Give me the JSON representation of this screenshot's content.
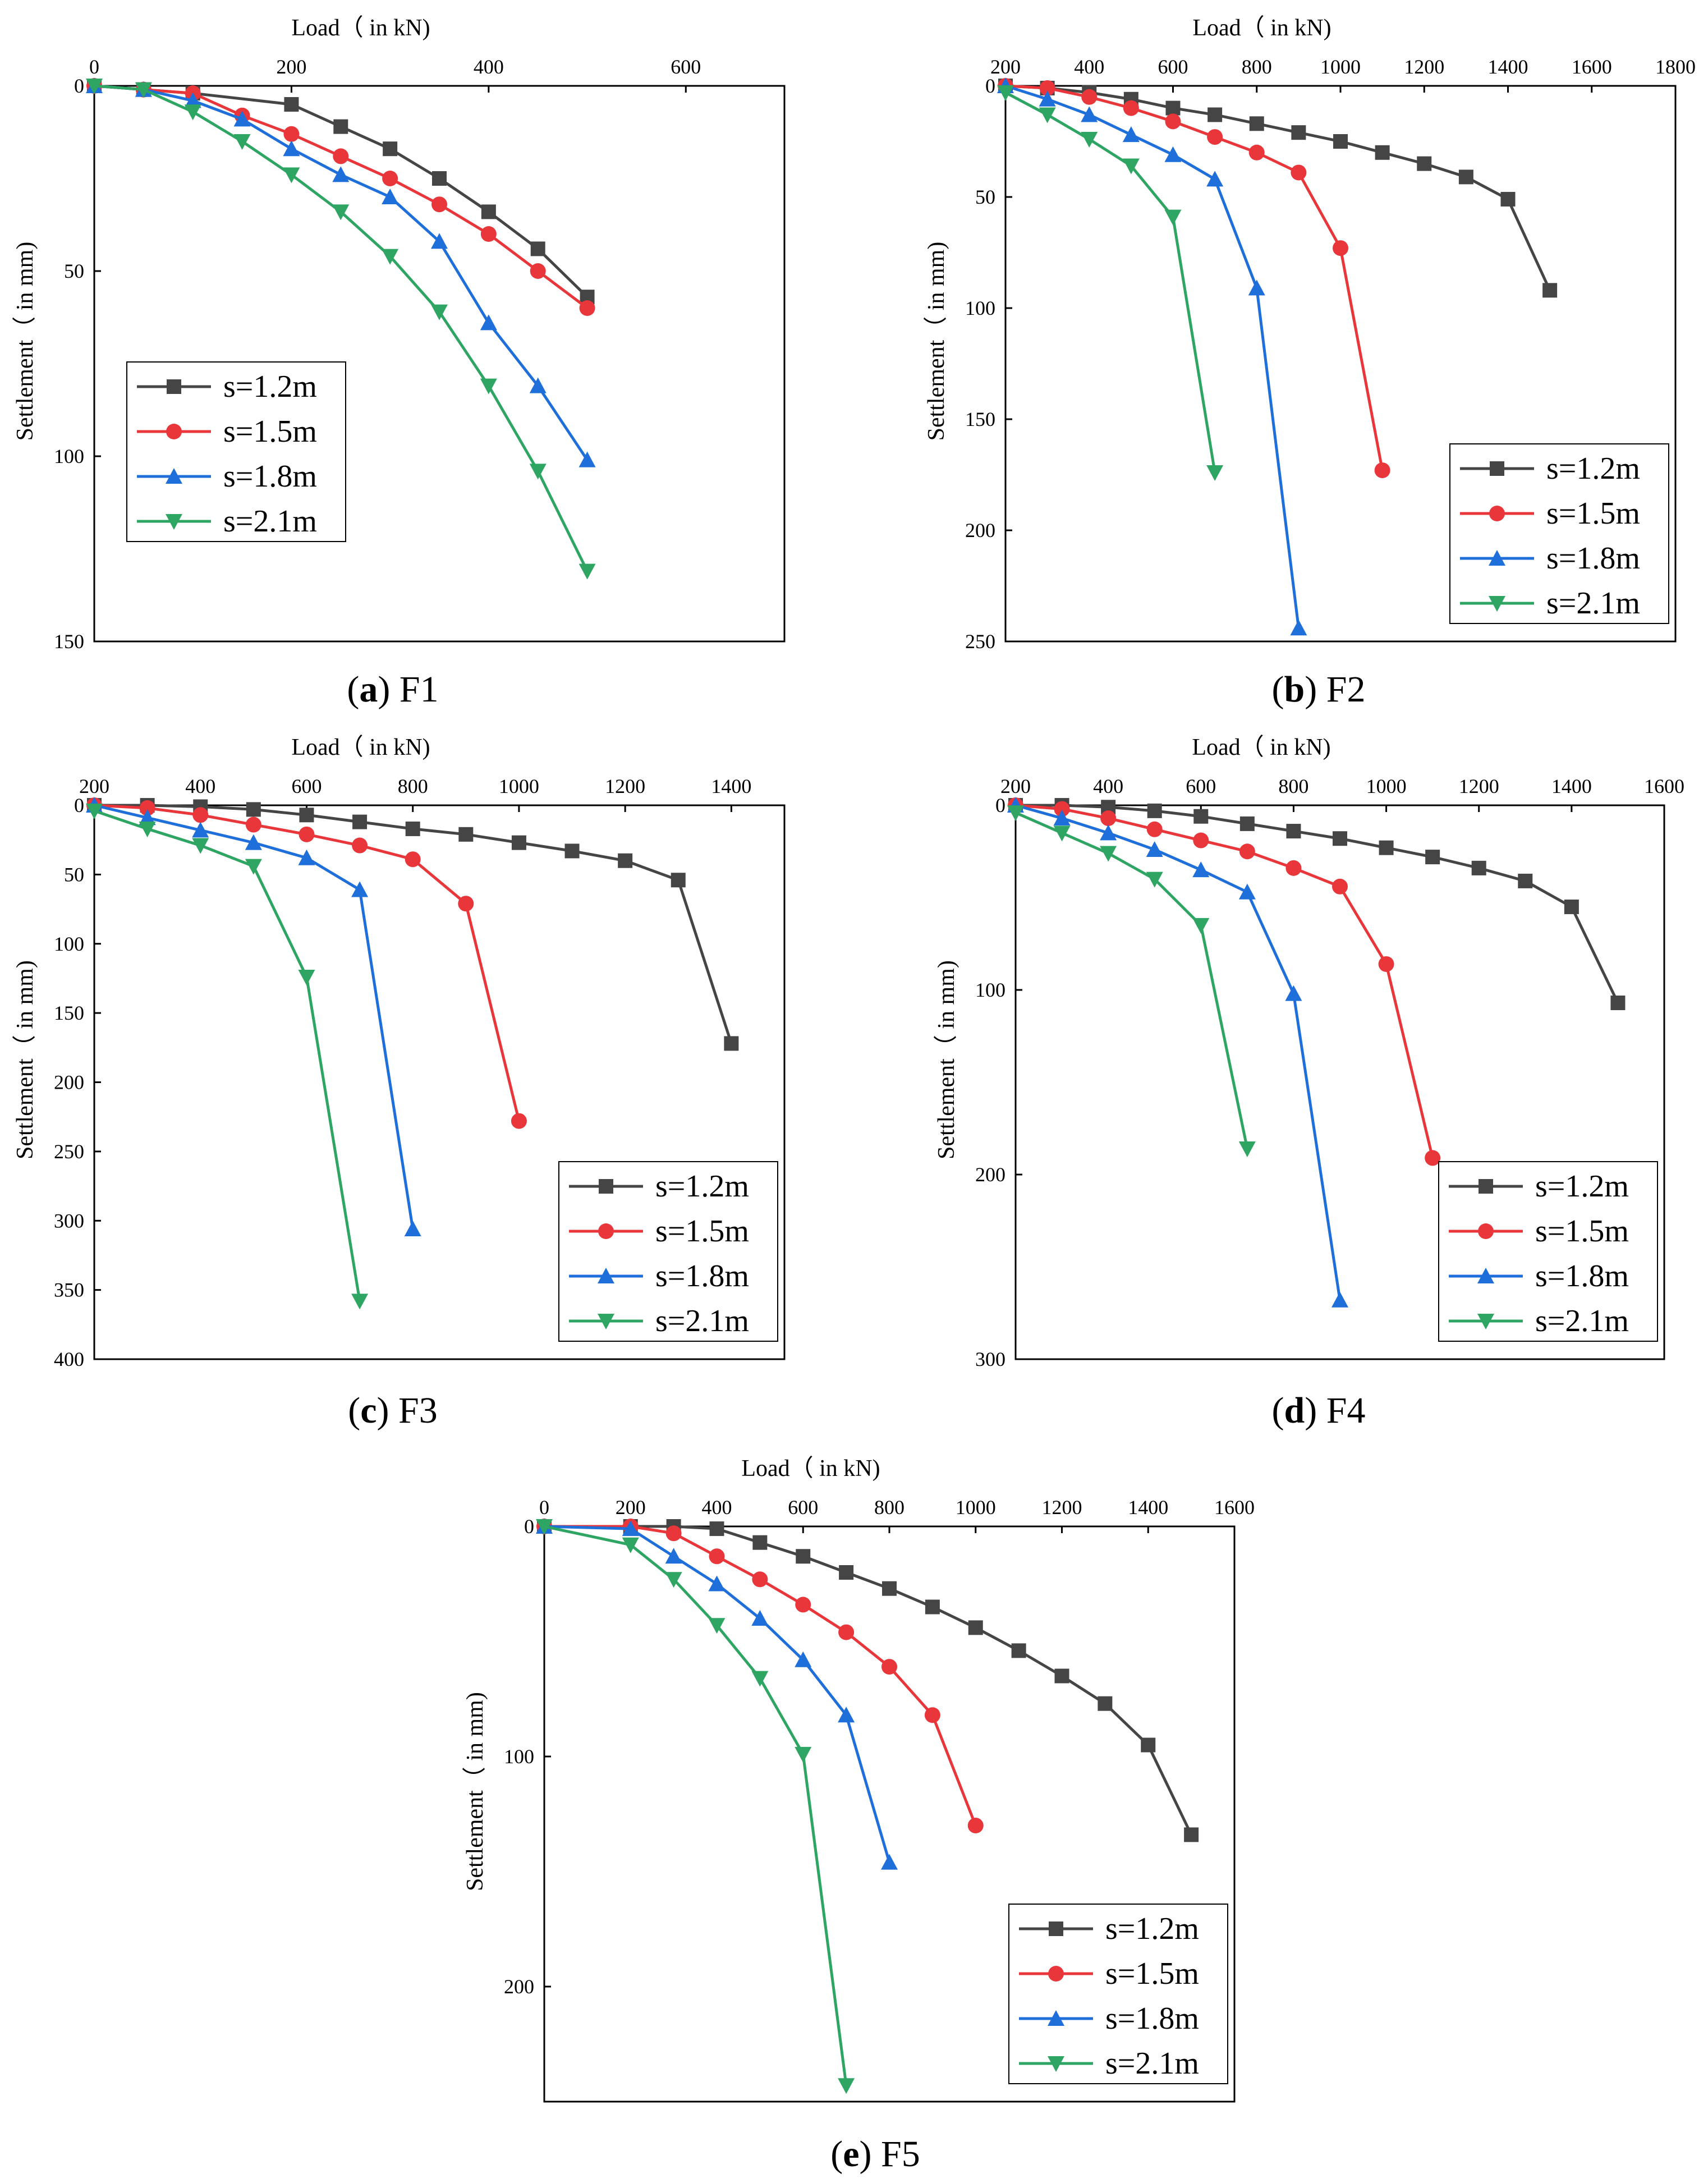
{
  "colors": {
    "s=1.2m": "#454545",
    "s=1.5m": "#e8363a",
    "s=1.8m": "#1f6fdb",
    "s=2.1m": "#2ea563",
    "axis": "#000000"
  },
  "series_names": [
    "s=1.2m",
    "s=1.5m",
    "s=1.8m",
    "s=2.1m"
  ],
  "series_markers": [
    "square",
    "circle",
    "triangle-up",
    "triangle-down"
  ],
  "chart_data": [
    {
      "type": "line",
      "panel_label": "a",
      "panel_name": "F1",
      "xlabel": "Load（ in kN)",
      "ylabel": "Settlement（ in mm)",
      "xlim": [
        0,
        700
      ],
      "ylim": [
        150,
        0
      ],
      "xticks": [
        0,
        200,
        400,
        600
      ],
      "yticks": [
        0,
        50,
        100,
        150
      ],
      "x_axis_position": "top",
      "y_inverted": true,
      "grid": false,
      "legend_position": "bottom-left",
      "series": [
        {
          "name": "s=1.2m",
          "x": [
            0,
            50,
            100,
            200,
            250,
            300,
            350,
            400,
            450,
            500
          ],
          "y": [
            0,
            1,
            2,
            5,
            11,
            17,
            25,
            34,
            44,
            57
          ]
        },
        {
          "name": "s=1.5m",
          "x": [
            0,
            50,
            100,
            150,
            200,
            250,
            300,
            350,
            400,
            450,
            500
          ],
          "y": [
            0,
            1,
            2,
            8,
            13,
            19,
            25,
            32,
            40,
            50,
            60
          ]
        },
        {
          "name": "s=1.8m",
          "x": [
            0,
            50,
            100,
            150,
            200,
            250,
            300,
            350,
            400,
            450,
            500
          ],
          "y": [
            0,
            1,
            4,
            9,
            17,
            24,
            30,
            42,
            64,
            81,
            101
          ]
        },
        {
          "name": "s=2.1m",
          "x": [
            0,
            50,
            100,
            150,
            200,
            250,
            300,
            350,
            400,
            450,
            500
          ],
          "y": [
            0,
            1,
            7,
            15,
            24,
            34,
            46,
            61,
            81,
            104,
            131
          ]
        }
      ]
    },
    {
      "type": "line",
      "panel_label": "b",
      "panel_name": "F2",
      "xlabel": "Load（ in kN)",
      "ylabel": "Settlement（ in mm)",
      "xlim": [
        200,
        1800
      ],
      "ylim": [
        250,
        0
      ],
      "xticks": [
        200,
        400,
        600,
        800,
        1000,
        1200,
        1400,
        1600,
        1800
      ],
      "yticks": [
        0,
        50,
        100,
        150,
        200,
        250
      ],
      "x_axis_position": "top",
      "y_inverted": true,
      "grid": false,
      "legend_position": "bottom-right",
      "series": [
        {
          "name": "s=1.2m",
          "x": [
            200,
            300,
            400,
            500,
            600,
            700,
            800,
            900,
            1000,
            1100,
            1200,
            1300,
            1400,
            1500
          ],
          "y": [
            0,
            1,
            3,
            6,
            10,
            13,
            17,
            21,
            25,
            30,
            35,
            41,
            51,
            92
          ]
        },
        {
          "name": "s=1.5m",
          "x": [
            200,
            300,
            400,
            500,
            600,
            700,
            800,
            900,
            1000,
            1100
          ],
          "y": [
            0,
            1,
            5,
            10,
            16,
            23,
            30,
            39,
            73,
            173
          ]
        },
        {
          "name": "s=1.8m",
          "x": [
            200,
            300,
            400,
            500,
            600,
            700,
            800,
            900
          ],
          "y": [
            0,
            6,
            13,
            22,
            31,
            42,
            91,
            244
          ]
        },
        {
          "name": "s=2.1m",
          "x": [
            200,
            300,
            400,
            500,
            600,
            700
          ],
          "y": [
            3,
            13,
            24,
            36,
            59,
            174
          ]
        }
      ]
    },
    {
      "type": "line",
      "panel_label": "c",
      "panel_name": "F3",
      "xlabel": "Load（ in kN)",
      "ylabel": "Settlement（ in mm)",
      "xlim": [
        200,
        1500
      ],
      "ylim": [
        400,
        0
      ],
      "xticks": [
        200,
        400,
        600,
        800,
        1000,
        1200,
        1400
      ],
      "yticks": [
        0,
        50,
        100,
        150,
        200,
        250,
        300,
        350,
        400
      ],
      "x_axis_position": "top",
      "y_inverted": true,
      "grid": false,
      "legend_position": "bottom-right",
      "series": [
        {
          "name": "s=1.2m",
          "x": [
            200,
            300,
            400,
            500,
            600,
            700,
            800,
            900,
            1000,
            1100,
            1200,
            1300,
            1400
          ],
          "y": [
            0,
            0,
            1,
            3,
            7,
            12,
            17,
            21,
            27,
            33,
            40,
            54,
            172
          ]
        },
        {
          "name": "s=1.5m",
          "x": [
            200,
            300,
            400,
            500,
            600,
            700,
            800,
            900,
            1000
          ],
          "y": [
            0,
            2,
            7,
            14,
            21,
            29,
            39,
            71,
            228
          ]
        },
        {
          "name": "s=1.8m",
          "x": [
            200,
            300,
            400,
            500,
            600,
            700,
            800
          ],
          "y": [
            0,
            9,
            18,
            27,
            38,
            61,
            306
          ]
        },
        {
          "name": "s=2.1m",
          "x": [
            200,
            300,
            400,
            500,
            600,
            700
          ],
          "y": [
            4,
            17,
            29,
            44,
            124,
            358
          ]
        }
      ]
    },
    {
      "type": "line",
      "panel_label": "d",
      "panel_name": "F4",
      "xlabel": "Load（ in kN)",
      "ylabel": "Settlement（ in mm)",
      "xlim": [
        200,
        1600
      ],
      "ylim": [
        300,
        0
      ],
      "xticks": [
        200,
        400,
        600,
        800,
        1000,
        1200,
        1400,
        1600
      ],
      "yticks": [
        0,
        100,
        200,
        300
      ],
      "x_axis_position": "top",
      "y_inverted": true,
      "grid": false,
      "legend_position": "bottom-right",
      "series": [
        {
          "name": "s=1.2m",
          "x": [
            200,
            300,
            400,
            500,
            600,
            700,
            800,
            900,
            1000,
            1100,
            1200,
            1300,
            1400,
            1500
          ],
          "y": [
            0,
            0,
            1,
            3,
            6,
            10,
            14,
            18,
            23,
            28,
            34,
            41,
            55,
            107
          ]
        },
        {
          "name": "s=1.5m",
          "x": [
            200,
            300,
            400,
            500,
            600,
            700,
            800,
            900,
            1000,
            1100
          ],
          "y": [
            0,
            2,
            7,
            13,
            19,
            25,
            34,
            44,
            86,
            191
          ]
        },
        {
          "name": "s=1.8m",
          "x": [
            200,
            300,
            400,
            500,
            600,
            700,
            800,
            900
          ],
          "y": [
            0,
            7,
            15,
            24,
            35,
            47,
            102,
            268
          ]
        },
        {
          "name": "s=2.1m",
          "x": [
            200,
            300,
            400,
            500,
            600,
            700
          ],
          "y": [
            4,
            15,
            26,
            40,
            65,
            186
          ]
        }
      ]
    },
    {
      "type": "line",
      "panel_label": "e",
      "panel_name": "F5",
      "xlabel": "Load（ in kN)",
      "ylabel": "Settlement（ in mm)",
      "xlim": [
        0,
        1600
      ],
      "ylim": [
        250,
        0
      ],
      "xticks": [
        0,
        200,
        400,
        600,
        800,
        1000,
        1200,
        1400,
        1600
      ],
      "yticks": [
        0,
        100,
        200
      ],
      "x_axis_position": "top",
      "y_inverted": true,
      "grid": false,
      "legend_position": "bottom-right",
      "series": [
        {
          "name": "s=1.2m",
          "x": [
            0,
            200,
            300,
            400,
            500,
            600,
            700,
            800,
            900,
            1000,
            1100,
            1200,
            1300,
            1400,
            1500
          ],
          "y": [
            0,
            0,
            0,
            1,
            7,
            13,
            20,
            27,
            35,
            44,
            54,
            65,
            77,
            95,
            134
          ]
        },
        {
          "name": "s=1.5m",
          "x": [
            0,
            200,
            300,
            400,
            500,
            600,
            700,
            800,
            900,
            1000
          ],
          "y": [
            0,
            0,
            3,
            13,
            23,
            34,
            46,
            61,
            82,
            130
          ]
        },
        {
          "name": "s=1.8m",
          "x": [
            0,
            200,
            300,
            400,
            500,
            600,
            700,
            800
          ],
          "y": [
            0,
            1,
            13,
            25,
            40,
            58,
            82,
            146
          ]
        },
        {
          "name": "s=2.1m",
          "x": [
            0,
            200,
            300,
            400,
            500,
            600,
            700
          ],
          "y": [
            0,
            8,
            23,
            43,
            66,
            99,
            243
          ]
        }
      ]
    }
  ]
}
